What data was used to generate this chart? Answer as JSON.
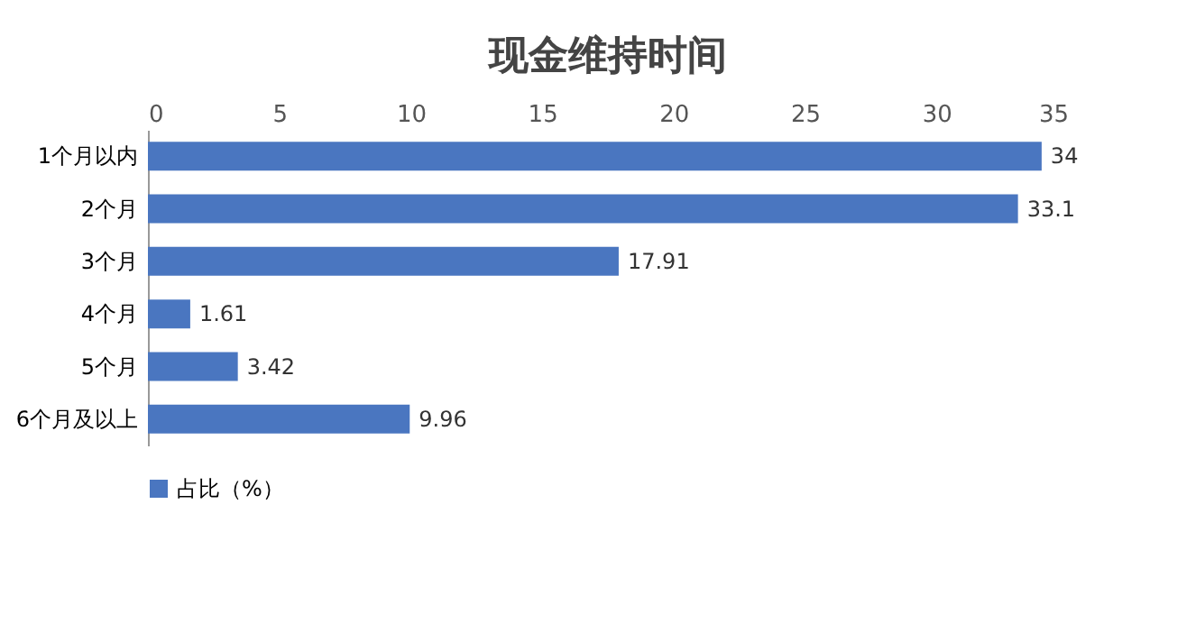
{
  "chart_data": {
    "type": "bar",
    "orientation": "horizontal",
    "title": "现金维持时间",
    "categories": [
      "1个月以内",
      "2个月",
      "3个月",
      "4个月",
      "5个月",
      "6个月及以上"
    ],
    "series": [
      {
        "name": "占比（%）",
        "color": "#4a76c0",
        "values": [
          34,
          33.1,
          17.91,
          1.61,
          3.42,
          9.96
        ]
      }
    ],
    "xlim": [
      0,
      35
    ],
    "xticks": [
      0,
      5,
      10,
      15,
      20,
      25,
      30,
      35
    ],
    "data_labels": true,
    "legend": "bottom"
  }
}
